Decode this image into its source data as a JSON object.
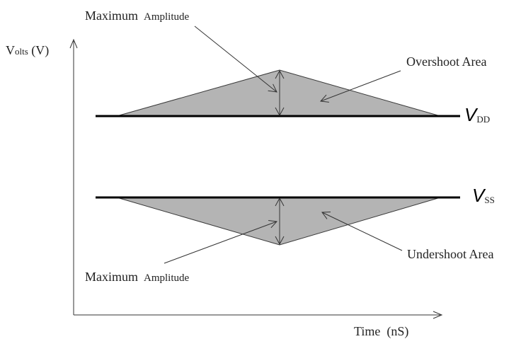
{
  "y_axis_label": {
    "main": "V",
    "small": "olts",
    "rest": " (V)"
  },
  "x_axis_label": "Time  (nS)",
  "rails": {
    "vdd": {
      "letter": "V",
      "subscript": "DD"
    },
    "vss": {
      "letter": "V",
      "subscript": "SS"
    }
  },
  "annotations": {
    "max_amplitude_top": {
      "word1": "Maximum",
      "word2": "Amplitude"
    },
    "max_amplitude_bottom": {
      "word1": "Maximum",
      "word2": "Amplitude"
    },
    "overshoot": "Overshoot Area",
    "undershoot": "Undershoot Area"
  },
  "colors": {
    "area_fill": "#b4b4b4",
    "line": "#000000",
    "arrow": "#333333",
    "text": "#222222"
  }
}
